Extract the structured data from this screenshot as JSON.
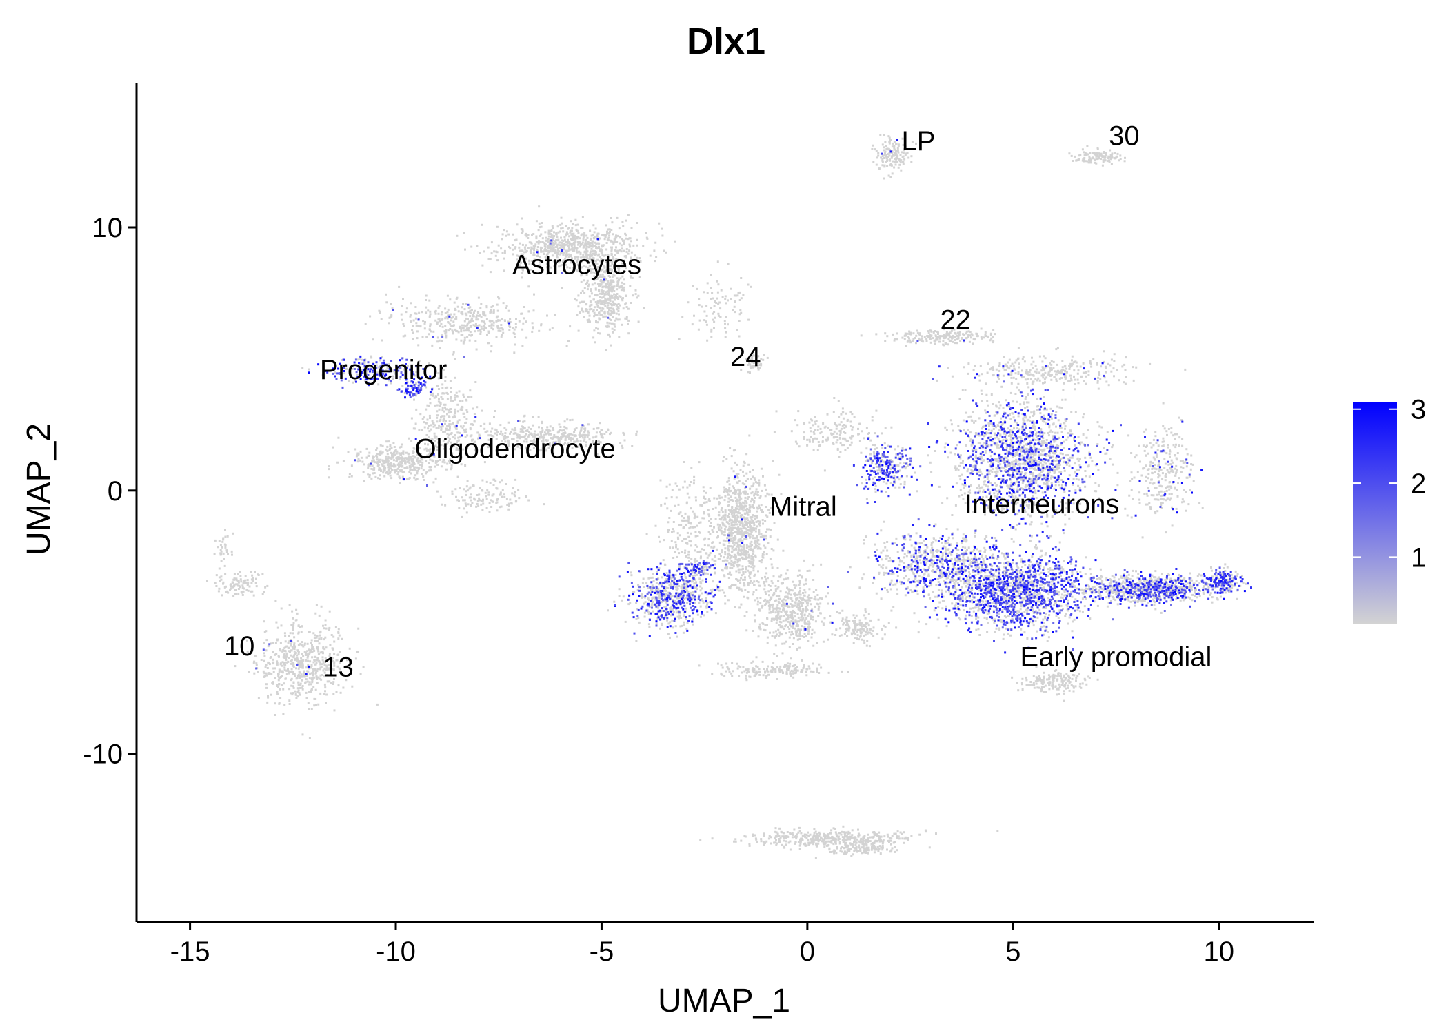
{
  "chart_data": {
    "type": "scatter",
    "title": "Dlx1",
    "xlabel": "UMAP_1",
    "ylabel": "UMAP_2",
    "xlim": [
      -16.3,
      12.3
    ],
    "ylim": [
      -16.4,
      15.5
    ],
    "x_ticks": [
      -15,
      -10,
      -5,
      0,
      5,
      10
    ],
    "x_tick_labels": [
      "-15",
      "-10",
      "-5",
      "0",
      "5",
      "10"
    ],
    "y_ticks": [
      -10,
      0,
      10
    ],
    "y_tick_labels": [
      "-10",
      "0",
      "10"
    ],
    "grid": false,
    "legend": {
      "placement": "right",
      "type": "color-gradient",
      "low_color": "#d3d3d3",
      "high_color": "#0000ff",
      "range": [
        0.1,
        3.1
      ],
      "ticks": [
        1,
        2,
        3
      ],
      "tick_labels": [
        "1",
        "2",
        "3"
      ]
    },
    "cluster_labels": [
      {
        "text": "LP",
        "x": 2.7,
        "y": 13.3
      },
      {
        "text": "30",
        "x": 7.7,
        "y": 13.5
      },
      {
        "text": "Astrocytes",
        "x": -5.6,
        "y": 8.6
      },
      {
        "text": "22",
        "x": 3.6,
        "y": 6.5
      },
      {
        "text": "24",
        "x": -1.5,
        "y": 5.1
      },
      {
        "text": "Progenitor",
        "x": -10.3,
        "y": 4.6
      },
      {
        "text": "Oligodendrocyte",
        "x": -7.1,
        "y": 1.6
      },
      {
        "text": "Mitral",
        "x": -0.1,
        "y": -0.6
      },
      {
        "text": "Interneurons",
        "x": 5.7,
        "y": -0.5
      },
      {
        "text": "Early promodial",
        "x": 7.5,
        "y": -6.3
      },
      {
        "text": "10",
        "x": -13.8,
        "y": -5.9
      },
      {
        "text": "13",
        "x": -11.4,
        "y": -6.7
      }
    ],
    "clusters": [
      {
        "cx": 2.05,
        "cy": 12.8,
        "sx": 0.35,
        "sy": 0.6,
        "n": 140,
        "expr": 0.02
      },
      {
        "cx": 7.0,
        "cy": 12.7,
        "sx": 0.55,
        "sy": 0.25,
        "n": 110,
        "expr": 0.0
      },
      {
        "cx": -5.8,
        "cy": 9.3,
        "sx": 1.6,
        "sy": 0.8,
        "n": 700,
        "expr": 0.01
      },
      {
        "cx": -4.9,
        "cy": 7.6,
        "sx": 0.6,
        "sy": 1.4,
        "n": 450,
        "expr": 0.01
      },
      {
        "cx": -8.3,
        "cy": 6.4,
        "sx": 1.7,
        "sy": 0.8,
        "n": 380,
        "expr": 0.02
      },
      {
        "cx": -2.2,
        "cy": 7.0,
        "sx": 0.8,
        "sy": 1.0,
        "n": 90,
        "expr": 0.0
      },
      {
        "cx": -1.3,
        "cy": 4.9,
        "sx": 0.2,
        "sy": 0.3,
        "n": 50,
        "expr": 0.0
      },
      {
        "cx": -10.6,
        "cy": 4.6,
        "sx": 1.0,
        "sy": 0.5,
        "n": 190,
        "expr": 0.55
      },
      {
        "cx": -9.6,
        "cy": 3.9,
        "sx": 0.3,
        "sy": 0.3,
        "n": 70,
        "expr": 0.85
      },
      {
        "cx": -8.8,
        "cy": 2.7,
        "sx": 0.7,
        "sy": 1.6,
        "n": 300,
        "expr": 0.02
      },
      {
        "cx": -10.0,
        "cy": 1.1,
        "sx": 1.0,
        "sy": 0.6,
        "n": 380,
        "expr": 0.01
      },
      {
        "cx": -6.3,
        "cy": 2.1,
        "sx": 1.6,
        "sy": 0.45,
        "n": 380,
        "expr": 0.01
      },
      {
        "cx": -7.8,
        "cy": -0.2,
        "sx": 0.9,
        "sy": 0.6,
        "n": 120,
        "expr": 0.0
      },
      {
        "cx": 3.2,
        "cy": 5.9,
        "sx": 1.1,
        "sy": 0.25,
        "n": 200,
        "expr": 0.01
      },
      {
        "cx": 5.8,
        "cy": 4.6,
        "sx": 1.8,
        "sy": 0.5,
        "n": 280,
        "expr": 0.04
      },
      {
        "cx": 5.2,
        "cy": 1.3,
        "sx": 1.4,
        "sy": 2.0,
        "n": 1700,
        "expr": 0.35
      },
      {
        "cx": 5.0,
        "cy": -3.8,
        "sx": 1.5,
        "sy": 1.3,
        "n": 1500,
        "expr": 0.5
      },
      {
        "cx": 3.2,
        "cy": -2.8,
        "sx": 1.5,
        "sy": 1.1,
        "n": 700,
        "expr": 0.3
      },
      {
        "cx": 8.2,
        "cy": -3.7,
        "sx": 1.5,
        "sy": 0.5,
        "n": 900,
        "expr": 0.35
      },
      {
        "cx": 10.1,
        "cy": -3.4,
        "sx": 0.4,
        "sy": 0.4,
        "n": 180,
        "expr": 0.45
      },
      {
        "cx": 1.9,
        "cy": 0.9,
        "sx": 0.6,
        "sy": 0.8,
        "n": 260,
        "expr": 0.55
      },
      {
        "cx": 8.6,
        "cy": 0.8,
        "sx": 0.7,
        "sy": 1.6,
        "n": 280,
        "expr": 0.1
      },
      {
        "cx": 6.0,
        "cy": -7.2,
        "sx": 0.7,
        "sy": 0.4,
        "n": 160,
        "expr": 0.0
      },
      {
        "cx": -1.6,
        "cy": -1.5,
        "sx": 0.6,
        "sy": 2.2,
        "n": 900,
        "expr": 0.01
      },
      {
        "cx": -0.4,
        "cy": -4.5,
        "sx": 0.7,
        "sy": 1.3,
        "n": 500,
        "expr": 0.01
      },
      {
        "cx": -2.9,
        "cy": -1.3,
        "sx": 0.7,
        "sy": 1.9,
        "n": 200,
        "expr": 0.0
      },
      {
        "cx": 0.6,
        "cy": 2.3,
        "sx": 1.0,
        "sy": 0.8,
        "n": 160,
        "expr": 0.0
      },
      {
        "cx": -0.9,
        "cy": -6.8,
        "sx": 1.2,
        "sy": 0.25,
        "n": 160,
        "expr": 0.0
      },
      {
        "cx": 1.2,
        "cy": -5.2,
        "sx": 0.5,
        "sy": 0.5,
        "n": 130,
        "expr": 0.02
      },
      {
        "cx": -3.3,
        "cy": -4.0,
        "sx": 0.9,
        "sy": 1.0,
        "n": 620,
        "expr": 0.4
      },
      {
        "cx": -2.7,
        "cy": -2.9,
        "sx": 0.4,
        "sy": 0.25,
        "n": 100,
        "expr": 0.55
      },
      {
        "cx": -12.3,
        "cy": -6.5,
        "sx": 1.0,
        "sy": 1.4,
        "n": 600,
        "expr": 0.01
      },
      {
        "cx": -13.8,
        "cy": -3.5,
        "sx": 0.6,
        "sy": 0.4,
        "n": 100,
        "expr": 0.0
      },
      {
        "cx": -14.2,
        "cy": -2.1,
        "sx": 0.2,
        "sy": 0.6,
        "n": 30,
        "expr": 0.0
      },
      {
        "cx": 0.5,
        "cy": -13.2,
        "sx": 1.9,
        "sy": 0.3,
        "n": 400,
        "expr": 0.0
      },
      {
        "cx": 1.3,
        "cy": -13.6,
        "sx": 0.8,
        "sy": 0.2,
        "n": 100,
        "expr": 0.02
      }
    ]
  }
}
